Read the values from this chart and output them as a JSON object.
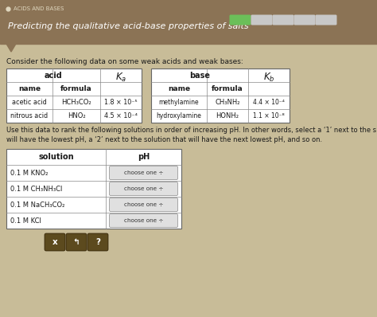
{
  "title_small": "ACIDS AND BASES",
  "title_main": "Predicting the qualitative acid-base properties of salts",
  "header_bg": "#8B7355",
  "body_bg": "#C8BC98",
  "white": "#FFFFFF",
  "dark": "#1A1A1A",
  "intro_text": "Consider the following data on some weak acids and weak bases:",
  "acid_table": {
    "rows": [
      [
        "acetic acid",
        "HCH₃CO₂",
        "1.8 × 10⁻⁵"
      ],
      [
        "nitrous acid",
        "HNO₂",
        "4.5 × 10⁻⁴"
      ]
    ]
  },
  "base_table": {
    "rows": [
      [
        "methylamine",
        "CH₃NH₂",
        "4.4 × 10⁻⁴"
      ],
      [
        "hydroxylamine",
        "HONH₂",
        "1.1 × 10⁻⁸"
      ]
    ]
  },
  "rank_text1": "Use this data to rank the following solutions in order of increasing pH. In other words, select a ‘1’ next to the s",
  "rank_text2": "will have the lowest pH, a ‘2’ next to the solution that will have the next lowest pH, and so on.",
  "solution_rows": [
    "0.1 M KNO₂",
    "0.1 M CH₃NH₃Cl",
    "0.1 M NaCH₃CO₂",
    "0.1 M KCl"
  ],
  "progress_colors": [
    "#6BBF59",
    "#C8C8C8",
    "#C8C8C8",
    "#C8C8C8",
    "#C8C8C8"
  ],
  "button_bg": "#5C4A1E",
  "button_labels": [
    "x",
    "↰",
    "?"
  ]
}
